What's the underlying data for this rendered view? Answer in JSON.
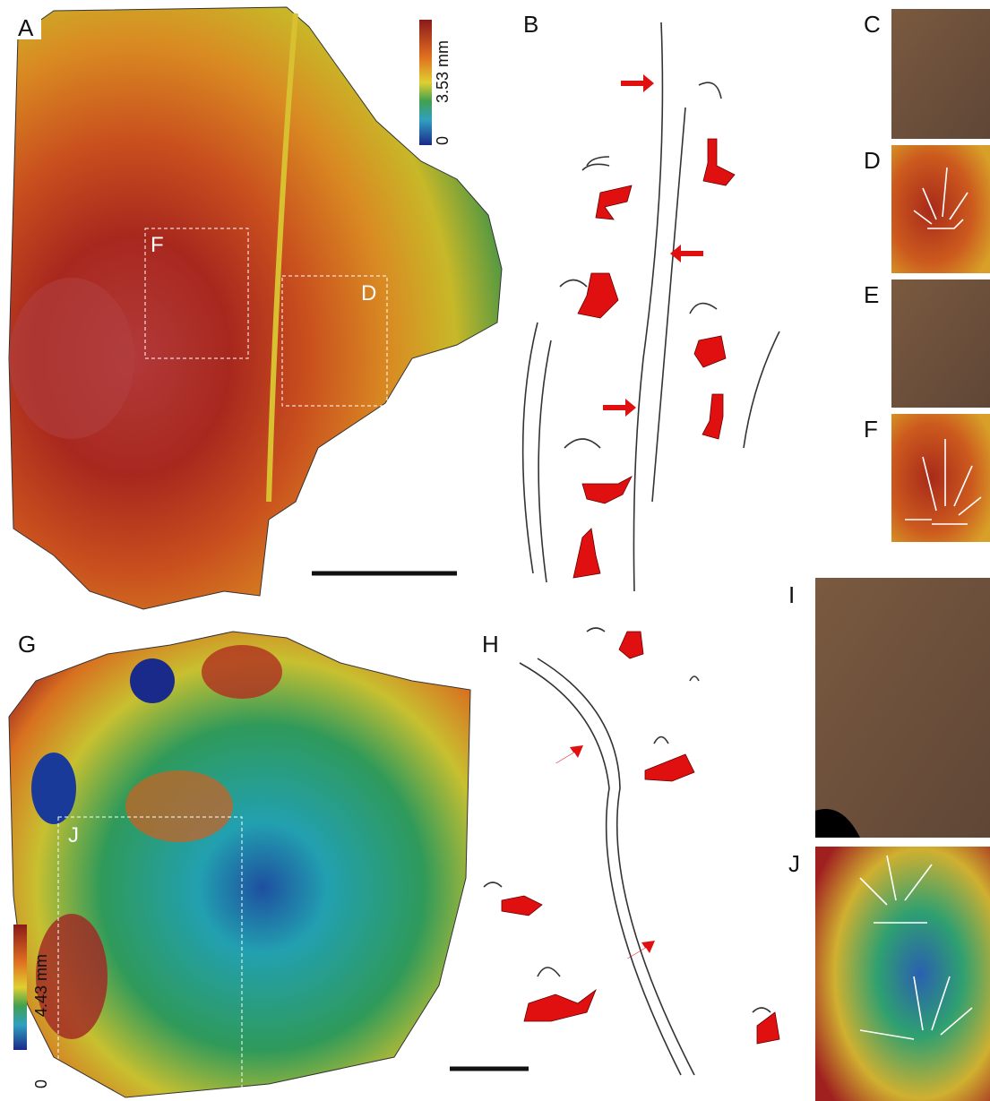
{
  "panel_labels": [
    "A",
    "B",
    "C",
    "D",
    "E",
    "F",
    "G",
    "H",
    "I",
    "J"
  ],
  "insets": [
    "F",
    "D",
    "J"
  ],
  "colorbars": [
    {
      "max": "3.53 mm",
      "min": "0"
    },
    {
      "max": "4.43 mm",
      "min": "0"
    }
  ]
}
